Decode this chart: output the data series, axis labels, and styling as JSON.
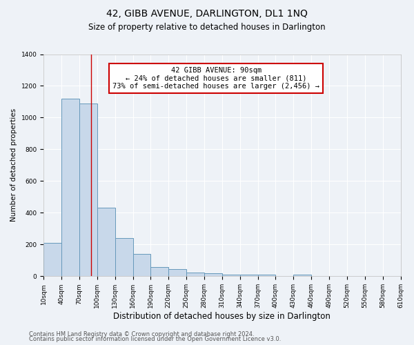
{
  "title": "42, GIBB AVENUE, DARLINGTON, DL1 1NQ",
  "subtitle": "Size of property relative to detached houses in Darlington",
  "xlabel": "Distribution of detached houses by size in Darlington",
  "ylabel": "Number of detached properties",
  "bar_color": "#c8d8ea",
  "bar_edge_color": "#6699bb",
  "background_color": "#eef2f7",
  "grid_color": "#ffffff",
  "property_line_x": 90,
  "annotation_text": "42 GIBB AVENUE: 90sqm\n← 24% of detached houses are smaller (811)\n73% of semi-detached houses are larger (2,456) →",
  "annotation_box_color": "#ffffff",
  "annotation_box_edge": "#cc0000",
  "annotation_text_fontsize": 7.5,
  "bin_edges": [
    10,
    40,
    70,
    100,
    130,
    160,
    190,
    220,
    250,
    280,
    310,
    340,
    370,
    400,
    430,
    460,
    490,
    520,
    550,
    580,
    610
  ],
  "bin_heights": [
    210,
    1120,
    1090,
    430,
    240,
    140,
    60,
    45,
    25,
    17,
    10,
    10,
    10,
    0,
    10,
    0,
    0,
    0,
    0,
    0
  ],
  "tick_labels": [
    "10sqm",
    "40sqm",
    "70sqm",
    "100sqm",
    "130sqm",
    "160sqm",
    "190sqm",
    "220sqm",
    "250sqm",
    "280sqm",
    "310sqm",
    "340sqm",
    "370sqm",
    "400sqm",
    "430sqm",
    "460sqm",
    "490sqm",
    "520sqm",
    "550sqm",
    "580sqm",
    "610sqm"
  ],
  "ylim": [
    0,
    1400
  ],
  "yticks": [
    0,
    200,
    400,
    600,
    800,
    1000,
    1200,
    1400
  ],
  "footer1": "Contains HM Land Registry data © Crown copyright and database right 2024.",
  "footer2": "Contains public sector information licensed under the Open Government Licence v3.0.",
  "title_fontsize": 10,
  "subtitle_fontsize": 8.5,
  "xlabel_fontsize": 8.5,
  "ylabel_fontsize": 7.5,
  "tick_fontsize": 6.5,
  "footer_fontsize": 6
}
